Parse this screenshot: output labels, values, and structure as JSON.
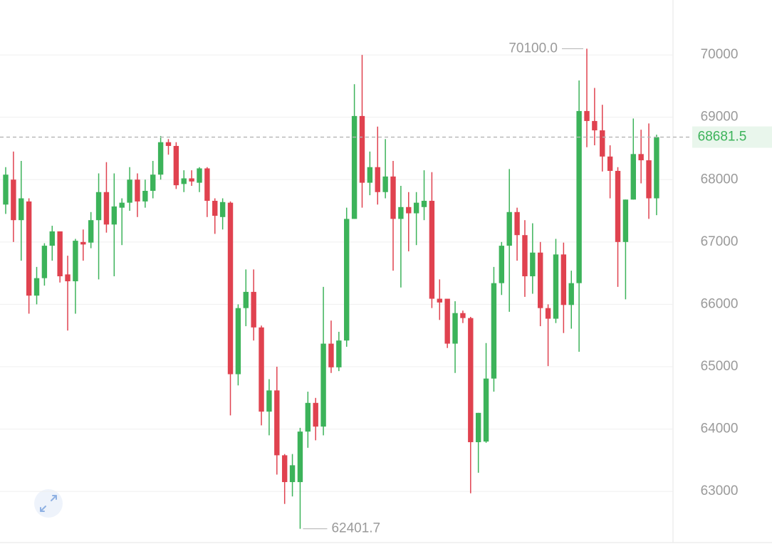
{
  "chart_data": {
    "type": "candlestick",
    "up_color": "#3cb35a",
    "down_color": "#e0424f",
    "grid": true,
    "ylim": [
      62180,
      70880
    ],
    "yticks": [
      63000,
      64000,
      65000,
      66000,
      67000,
      68000,
      69000,
      70000
    ],
    "last_price": 68681.5,
    "max_marker": {
      "value": 70100,
      "label": "70100.0"
    },
    "min_marker": 62401.7,
    "open": [
      67600,
      68000,
      67350,
      67650,
      66140,
      66420,
      66940,
      67170,
      66480,
      66370,
      67000,
      66990,
      67350,
      67800,
      67280,
      67550,
      67630,
      68000,
      67650,
      67820,
      68080,
      68600,
      68540,
      67930,
      68020,
      67950,
      68180,
      67660,
      67400,
      67630,
      64880,
      65940,
      66200,
      65630,
      64280,
      64620,
      63580,
      63150,
      63150,
      63960,
      64420,
      64040,
      65370,
      64990,
      65420,
      67370,
      69020,
      67950,
      68200,
      67800,
      68050,
      67370,
      67560,
      67460,
      67560,
      67660,
      66090,
      66090,
      65370,
      65860,
      65780,
      63790,
      63800,
      64810,
      66340,
      66940,
      67480,
      67110,
      66450,
      66830,
      65940,
      65770,
      66800,
      65990,
      66340,
      69100,
      68940,
      68790,
      68370,
      68140,
      67000,
      67680,
      68410,
      68310,
      67700
    ],
    "high": [
      68200,
      68450,
      68300,
      67700,
      66600,
      66980,
      67260,
      67170,
      66780,
      67050,
      67200,
      67480,
      68100,
      68280,
      68100,
      67700,
      68200,
      68100,
      68000,
      68300,
      68700,
      68650,
      68600,
      68150,
      68150,
      68200,
      68200,
      67700,
      67700,
      67650,
      66000,
      66560,
      66560,
      65660,
      64800,
      65000,
      63600,
      63600,
      64020,
      64600,
      64500,
      66280,
      65740,
      65560,
      67550,
      69530,
      70000,
      68450,
      68850,
      68650,
      68300,
      67900,
      67800,
      67800,
      68150,
      68120,
      66400,
      66080,
      66050,
      65900,
      65800,
      64260,
      65380,
      66600,
      67000,
      68170,
      67550,
      67350,
      67300,
      67000,
      66000,
      67050,
      66990,
      66540,
      69590,
      70100,
      69470,
      69200,
      68550,
      68200,
      67680,
      68980,
      68800,
      68900,
      68720
    ],
    "low": [
      67450,
      67000,
      66700,
      65850,
      66000,
      66300,
      66700,
      66350,
      65580,
      65850,
      66700,
      66900,
      66400,
      67150,
      66450,
      66950,
      67500,
      67400,
      67550,
      67700,
      68000,
      68400,
      67850,
      67800,
      67900,
      67800,
      67400,
      67130,
      67200,
      64220,
      64700,
      65650,
      65420,
      64060,
      63900,
      63270,
      62800,
      62920,
      62401.7,
      63700,
      63820,
      63900,
      64900,
      64930,
      65320,
      67370,
      67550,
      67750,
      67600,
      67700,
      66540,
      66270,
      66850,
      66950,
      67350,
      65940,
      65750,
      65300,
      64900,
      65700,
      62970,
      63300,
      63780,
      64600,
      66150,
      65880,
      66700,
      66120,
      66170,
      65650,
      65010,
      65700,
      65540,
      65610,
      65240,
      68520,
      68550,
      68130,
      67700,
      66280,
      66080,
      67680,
      67940,
      67370,
      67430
    ],
    "close": [
      68080,
      67350,
      67700,
      66140,
      66420,
      66940,
      67170,
      66450,
      66370,
      67020,
      66960,
      67350,
      67800,
      67280,
      67570,
      67630,
      68000,
      67650,
      67820,
      68080,
      68600,
      68540,
      67910,
      68020,
      67970,
      68180,
      67660,
      67420,
      67640,
      64880,
      65940,
      66200,
      65630,
      64280,
      64620,
      63580,
      63150,
      63420,
      63960,
      64420,
      64040,
      65370,
      64990,
      65420,
      67370,
      69020,
      67950,
      68200,
      67800,
      68050,
      67370,
      67560,
      67460,
      67630,
      67660,
      66090,
      66030,
      65370,
      65860,
      65780,
      63790,
      64260,
      64810,
      66340,
      66940,
      67480,
      67110,
      66450,
      66830,
      65940,
      65770,
      66800,
      65990,
      66340,
      69100,
      68940,
      68790,
      68370,
      68140,
      67000,
      67680,
      68410,
      68310,
      67700,
      68681.5
    ]
  }
}
